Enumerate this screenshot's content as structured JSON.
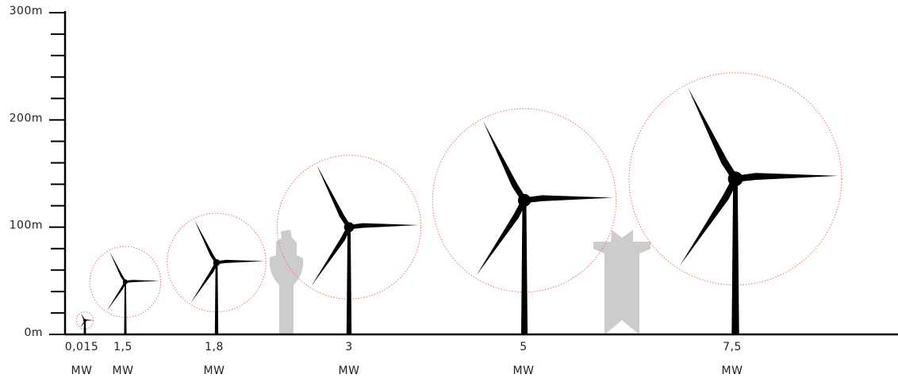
{
  "chart_data": {
    "type": "turbine",
    "categories": [
      "0,015",
      "1,5",
      "1,8",
      "3",
      "5",
      "7,5"
    ],
    "unit": "MW",
    "hub_height": [
      13,
      49,
      67,
      100,
      125,
      145
    ],
    "rotor_diameter": [
      16,
      66,
      92,
      134,
      171,
      198
    ],
    "rotor_color": "#e8735a",
    "color": "#000000",
    "ylim": [
      0,
      300
    ],
    "yticks": [
      {
        "value": 0,
        "label": "0m"
      },
      {
        "value": 100,
        "label": "100m"
      },
      {
        "value": 200,
        "label": "200m"
      },
      {
        "value": 300,
        "label": "300m"
      }
    ],
    "minor_yticks": [
      20,
      40,
      60,
      80,
      120,
      140,
      160,
      180,
      220,
      240,
      260,
      280
    ]
  }
}
